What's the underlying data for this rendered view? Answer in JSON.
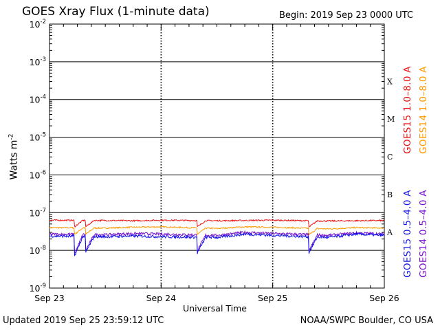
{
  "header": {
    "title": "GOES Xray Flux (1-minute data)",
    "begin": "Begin:  2019 Sep 23 0000 UTC"
  },
  "footer": {
    "updated": "Updated 2019 Sep 25 23:59:12 UTC",
    "credit": "NOAA/SWPC Boulder, CO USA"
  },
  "chart_data": {
    "type": "line",
    "title": "GOES Xray Flux (1-minute data)",
    "xlabel": "Universal Time",
    "ylabel": "Watts m",
    "ylabel_exp": "-2",
    "yscale": "log",
    "ylim": [
      1e-09,
      0.01
    ],
    "xlim": [
      "2019-09-23",
      "2019-09-26"
    ],
    "grid": true,
    "x_ticks": [
      "Sep 23",
      "Sep 24",
      "Sep 25",
      "Sep 26"
    ],
    "y_ticks": [
      {
        "base": "10",
        "exp": "-9"
      },
      {
        "base": "10",
        "exp": "-8"
      },
      {
        "base": "10",
        "exp": "-7"
      },
      {
        "base": "10",
        "exp": "-6"
      },
      {
        "base": "10",
        "exp": "-5"
      },
      {
        "base": "10",
        "exp": "-4"
      },
      {
        "base": "10",
        "exp": "-3"
      },
      {
        "base": "10",
        "exp": "-2"
      }
    ],
    "flare_classes": [
      {
        "label": "A",
        "value": 1e-08
      },
      {
        "label": "B",
        "value": 1e-07
      },
      {
        "label": "C",
        "value": 1e-06
      },
      {
        "label": "M",
        "value": 1e-05
      },
      {
        "label": "X",
        "value": 0.0001
      }
    ],
    "legend": [
      {
        "name": "GOES15 1.0–8.0 A",
        "color": "#ee1111"
      },
      {
        "name": "GOES14 1.0–8.0 A",
        "color": "#ff9900"
      },
      {
        "name": "GOES15 0.5–4.0 A",
        "color": "#1111ee"
      },
      {
        "name": "GOES14 0.5–4.0 A",
        "color": "#7711cc"
      }
    ],
    "series": [
      {
        "name": "GOES15 1.0–8.0 A",
        "color": "#ee1111",
        "x": [
          "2019-09-23T00:00",
          "2019-09-23T12:00",
          "2019-09-23T18:00",
          "2019-09-24T00:00",
          "2019-09-24T12:00",
          "2019-09-24T18:00",
          "2019-09-25T00:00",
          "2019-09-25T12:00",
          "2019-09-25T18:00",
          "2019-09-26T00:00"
        ],
        "values": [
          6.3e-08,
          6.2e-08,
          6.1e-08,
          6.3e-08,
          6.1e-08,
          6.2e-08,
          6.3e-08,
          6e-08,
          6.1e-08,
          6.2e-08
        ]
      },
      {
        "name": "GOES14 1.0–8.0 A",
        "color": "#ff9900",
        "x": [
          "2019-09-23T00:00",
          "2019-09-23T12:00",
          "2019-09-23T18:00",
          "2019-09-24T00:00",
          "2019-09-24T12:00",
          "2019-09-24T18:00",
          "2019-09-25T00:00",
          "2019-09-25T12:00",
          "2019-09-25T18:00",
          "2019-09-26T00:00"
        ],
        "values": [
          4e-08,
          3.9e-08,
          4.1e-08,
          4.2e-08,
          3.8e-08,
          4.2e-08,
          4.1e-08,
          3.7e-08,
          4e-08,
          3.9e-08
        ]
      },
      {
        "name": "GOES15 0.5–4.0 A",
        "color": "#1111ee",
        "x": [
          "2019-09-23T00:00",
          "2019-09-23T12:00",
          "2019-09-23T18:00",
          "2019-09-24T00:00",
          "2019-09-24T12:00",
          "2019-09-24T18:00",
          "2019-09-25T00:00",
          "2019-09-25T12:00",
          "2019-09-25T18:00",
          "2019-09-26T00:00"
        ],
        "values": [
          2.4e-08,
          2.3e-08,
          2.4e-08,
          2.3e-08,
          2.2e-08,
          2.7e-08,
          2.5e-08,
          2.2e-08,
          2.7e-08,
          2.5e-08
        ]
      },
      {
        "name": "GOES14 0.5–4.0 A",
        "color": "#7711cc",
        "x": [
          "2019-09-23T00:00",
          "2019-09-23T12:00",
          "2019-09-23T18:00",
          "2019-09-24T00:00",
          "2019-09-24T12:00",
          "2019-09-24T18:00",
          "2019-09-25T00:00",
          "2019-09-25T12:00",
          "2019-09-25T18:00",
          "2019-09-26T00:00"
        ],
        "values": [
          2.7e-08,
          2.6e-08,
          2.8e-08,
          2.7e-08,
          2.5e-08,
          3e-08,
          2.8e-08,
          2.5e-08,
          2.9e-08,
          2.7e-08
        ]
      }
    ]
  }
}
